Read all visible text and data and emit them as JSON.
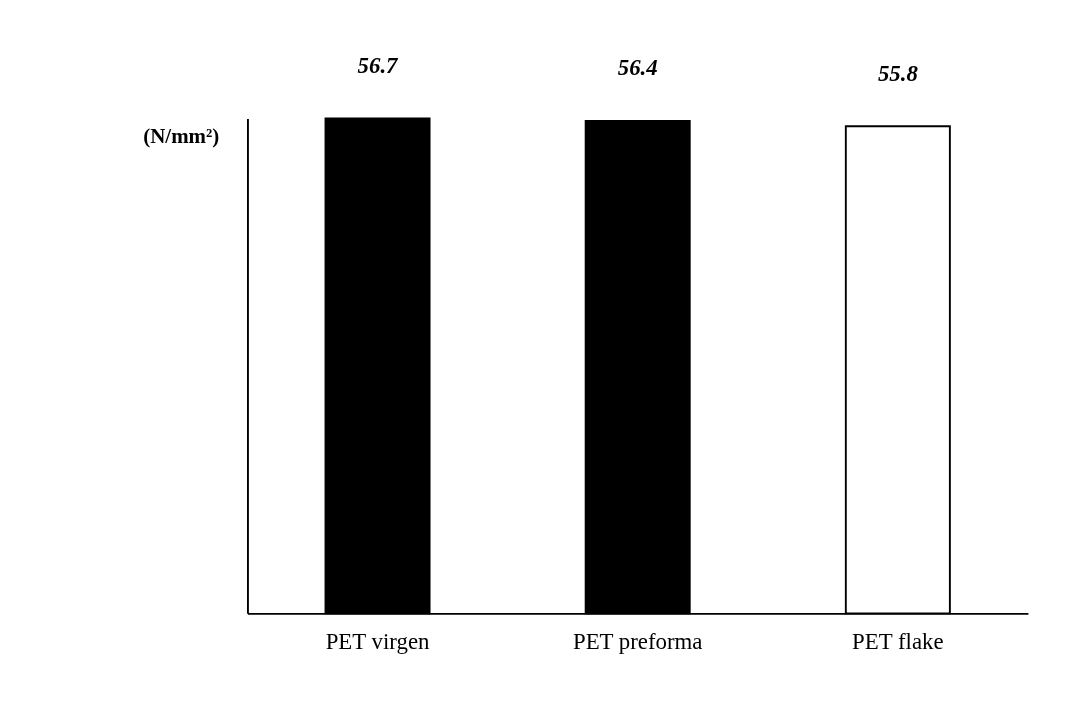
{
  "chart_data": {
    "type": "bar",
    "ylabel": "(N/mm²)",
    "categories": [
      "PET virgen",
      "PET preforma",
      "PET flake"
    ],
    "values": [
      56.7,
      56.4,
      55.8
    ],
    "colors": [
      "#000000",
      "#000000",
      "#ffffff"
    ],
    "data_labels": true,
    "grid": false
  }
}
